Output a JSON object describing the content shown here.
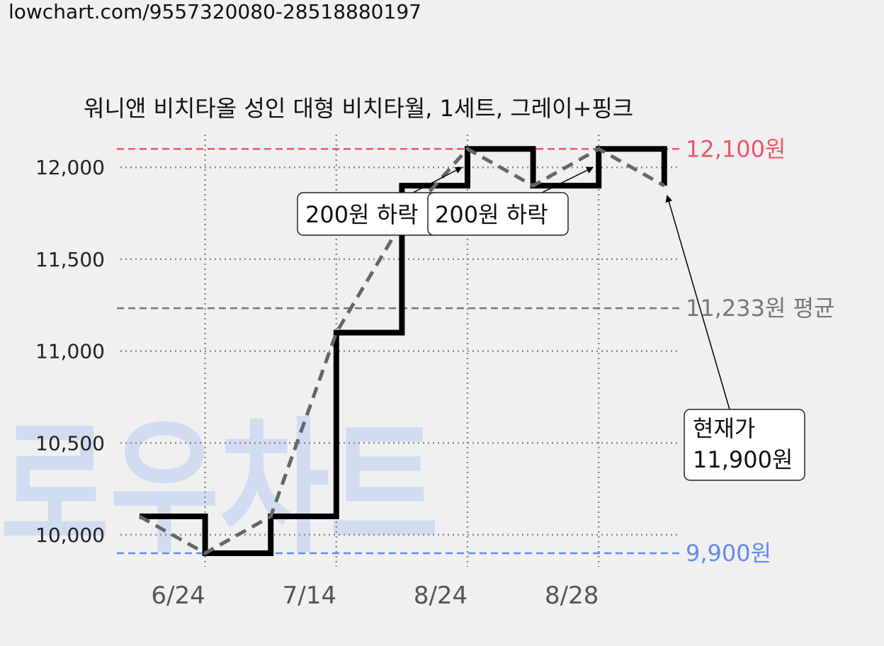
{
  "url": "lowchart.com/9557320080-28518880197",
  "watermark": "로우차트",
  "chart_data": {
    "type": "line",
    "title": "워니앤 비치타올 성인 대형 비치타월, 1세트, 그레이+핑크",
    "xlabel": "",
    "ylabel": "",
    "ylim": [
      9800,
      12200
    ],
    "y_ticks": [
      {
        "value": 10000,
        "label": "10,000"
      },
      {
        "value": 10500,
        "label": "10,500"
      },
      {
        "value": 11000,
        "label": "11,000"
      },
      {
        "value": 11500,
        "label": "11,500"
      },
      {
        "value": 12000,
        "label": "12,000"
      }
    ],
    "x_ticks": [
      {
        "index": 1,
        "label": "6/24"
      },
      {
        "index": 3,
        "label": "7/14"
      },
      {
        "index": 5,
        "label": "8/24"
      },
      {
        "index": 7,
        "label": "8/28"
      }
    ],
    "grid": true,
    "series": [
      {
        "style": "step",
        "color": "#000000",
        "values": [
          10100,
          9900,
          10100,
          11100,
          11900,
          12100,
          11900,
          12100,
          11900
        ]
      },
      {
        "style": "dashed-trend",
        "color": "#666666",
        "values": [
          10100,
          9900,
          10100,
          11100,
          11700,
          12100,
          11900,
          12100,
          11900
        ]
      }
    ],
    "reference_lines": [
      {
        "value": 12100,
        "label": "12,100원",
        "color": "#ee5566"
      },
      {
        "value": 11233,
        "label": "11,233원 평균",
        "color": "#777777"
      },
      {
        "value": 9900,
        "label": "9,900원",
        "color": "#6688ee"
      }
    ],
    "annotations": [
      {
        "text": "200원 하락",
        "target_index": 5
      },
      {
        "text": "200원 하락",
        "target_index": 7
      },
      {
        "lines": [
          "현재가",
          "11,900원"
        ],
        "target_index": 8
      }
    ]
  }
}
